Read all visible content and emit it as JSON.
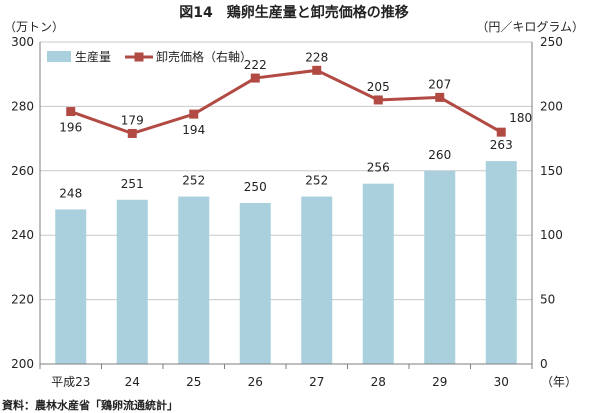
{
  "chart_data": {
    "type": "bar+line",
    "title": "図14　鶏卵生産量と卸売価格の推移",
    "left_unit": "（万トン）",
    "right_unit": "（円／キログラム）",
    "x_unit": "（年）",
    "categories": [
      "平成23",
      "24",
      "25",
      "26",
      "27",
      "28",
      "29",
      "30"
    ],
    "y_left": {
      "min": 200,
      "max": 300,
      "ticks": [
        200,
        220,
        240,
        260,
        280,
        300
      ]
    },
    "y_right": {
      "min": 0,
      "max": 250,
      "ticks": [
        0,
        50,
        100,
        150,
        200,
        250
      ]
    },
    "grid": true,
    "legend_position": "top-left",
    "series": [
      {
        "name": "生産量",
        "kind": "bar",
        "axis": "left",
        "color": "#a9d0dc",
        "values": [
          248,
          251,
          252,
          250,
          252,
          256,
          260,
          263
        ]
      },
      {
        "name": "卸売価格（右軸）",
        "kind": "line",
        "axis": "right",
        "color": "#b24a44",
        "values": [
          196,
          179,
          194,
          222,
          228,
          205,
          207,
          180
        ]
      }
    ],
    "source": "資料：農林水産省「鶏卵流通統計」"
  }
}
